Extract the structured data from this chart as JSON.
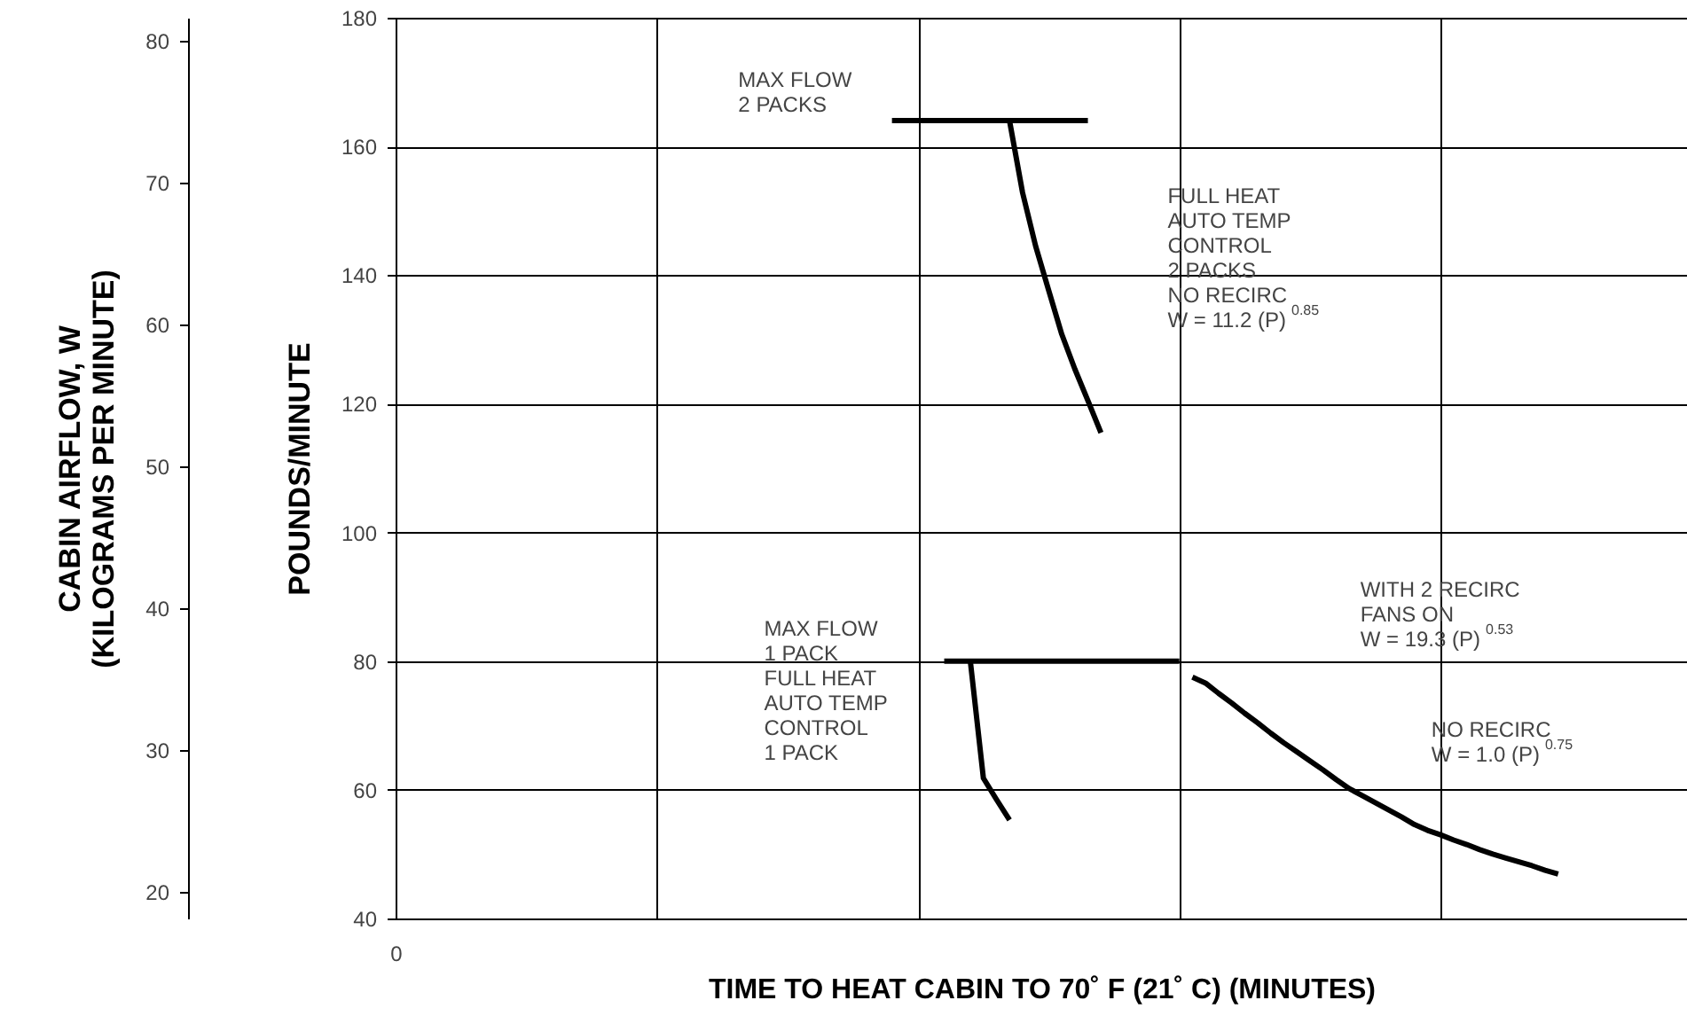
{
  "chart_data": {
    "type": "line",
    "xlabel": "TIME TO HEAT CABIN TO 70˚ F (21˚ C) (MINUTES)",
    "ylabel": "POUNDS/MINUTE",
    "y2label": "CABIN AIRFLOW, W\n(KILOGRAMS PER MINUTE)",
    "categories": [
      null,
      null,
      null,
      null,
      null,
      null,
      null,
      null,
      null,
      null,
      null,
      null,
      null,
      null,
      null,
      null,
      null,
      null,
      null,
      null,
      null,
      null,
      null,
      null,
      null,
      null,
      null,
      null,
      null,
      null,
      null,
      null,
      null,
      null,
      null,
      null,
      null,
      null,
      null,
      null,
      null,
      null,
      null,
      null,
      null,
      null,
      null,
      null,
      null,
      null,
      null,
      null,
      null,
      null,
      null,
      null,
      null,
      null,
      null,
      null,
      null,
      null,
      null,
      null,
      null,
      null,
      null,
      null,
      null,
      null,
      null,
      null,
      null,
      null,
      null,
      null,
      null,
      null,
      null,
      null,
      null,
      null,
      null,
      null,
      null,
      null,
      null,
      null,
      null,
      null,
      null,
      null,
      null,
      null,
      null,
      null,
      null,
      null,
      null,
      null
    ],
    "ylim": [
      40,
      180
    ],
    "yticks": [
      40,
      60,
      80,
      100,
      120,
      140,
      160,
      180
    ],
    "y2lim": [
      18.14,
      81.65
    ],
    "y2ticks": [
      20,
      30,
      40,
      50,
      60,
      70,
      80
    ],
    "grid": true,
    "marker": "none",
    "line_style": "solid",
    "series": [
      {
        "color": "#000000",
        "values": [
          null,
          null,
          null,
          null,
          null,
          null,
          null,
          null,
          null,
          null,
          null,
          null,
          null,
          null,
          null,
          null,
          null,
          null,
          null,
          null,
          null,
          null,
          null,
          null,
          null,
          null,
          null,
          null,
          null,
          null,
          null,
          null,
          null,
          null,
          null,
          null,
          null,
          null,
          164,
          164,
          164,
          164,
          164,
          164,
          164,
          164,
          164,
          164,
          164,
          164,
          164,
          164,
          164,
          164,
          null,
          null,
          null,
          null,
          null,
          null,
          null,
          null,
          null,
          null,
          null,
          null,
          null,
          null,
          null,
          null,
          null,
          null,
          null,
          null,
          null,
          null,
          null,
          null,
          null,
          null,
          null,
          null,
          null,
          null,
          null,
          null,
          null,
          null,
          null,
          null,
          null,
          null,
          null,
          null,
          null,
          null,
          null,
          null,
          null,
          null
        ]
      },
      {
        "color": "#000000",
        "values": [
          null,
          null,
          null,
          null,
          null,
          null,
          null,
          null,
          null,
          null,
          null,
          null,
          null,
          null,
          null,
          null,
          null,
          null,
          null,
          null,
          null,
          null,
          null,
          null,
          null,
          null,
          null,
          null,
          null,
          null,
          null,
          null,
          null,
          null,
          null,
          null,
          null,
          null,
          null,
          null,
          null,
          null,
          null,
          null,
          null,
          null,
          null,
          164,
          152.8,
          144.5,
          137.6,
          130.8,
          125.4,
          120.5,
          115.5,
          null,
          null,
          null,
          null,
          null,
          null,
          null,
          null,
          null,
          null,
          null,
          null,
          null,
          null,
          null,
          null,
          null,
          null,
          null,
          null,
          null,
          null,
          null,
          null,
          null,
          null,
          null,
          null,
          null,
          null,
          null,
          null,
          null,
          null,
          null,
          null,
          null,
          null,
          null,
          null,
          null,
          null,
          null,
          null,
          null
        ]
      },
      {
        "color": "#000000",
        "values": [
          null,
          null,
          null,
          null,
          null,
          null,
          null,
          null,
          null,
          null,
          null,
          null,
          null,
          null,
          null,
          null,
          null,
          null,
          null,
          null,
          null,
          null,
          null,
          null,
          null,
          null,
          null,
          null,
          null,
          null,
          null,
          null,
          null,
          null,
          null,
          null,
          null,
          null,
          null,
          null,
          null,
          null,
          80,
          80,
          80,
          80,
          80,
          80,
          80,
          80,
          80,
          80,
          80,
          80,
          80,
          80,
          80,
          80,
          80,
          80,
          80,
          null,
          null,
          null,
          null,
          null,
          null,
          null,
          null,
          null,
          null,
          null,
          null,
          null,
          null,
          null,
          null,
          null,
          null,
          null,
          null,
          null,
          null,
          null,
          null,
          null,
          null,
          null,
          null,
          null,
          null,
          null,
          null,
          null,
          null,
          null,
          null,
          null,
          null,
          null
        ]
      },
      {
        "color": "#000000",
        "values": [
          null,
          null,
          null,
          null,
          null,
          null,
          null,
          null,
          null,
          null,
          null,
          null,
          null,
          null,
          null,
          null,
          null,
          null,
          null,
          null,
          null,
          null,
          null,
          null,
          null,
          null,
          null,
          null,
          null,
          null,
          null,
          null,
          null,
          null,
          null,
          null,
          null,
          null,
          null,
          null,
          null,
          null,
          null,
          null,
          80,
          61.8,
          58.5,
          55.3,
          null,
          null,
          null,
          null,
          null,
          null,
          null,
          null,
          null,
          null,
          null,
          null,
          null,
          null,
          null,
          null,
          null,
          null,
          null,
          null,
          null,
          null,
          null,
          null,
          null,
          null,
          null,
          null,
          null,
          null,
          null,
          null,
          null,
          null,
          null,
          null,
          null,
          null,
          null,
          null,
          null,
          null,
          null,
          null,
          null,
          null,
          null,
          null,
          null,
          null,
          null,
          null
        ]
      },
      {
        "color": "#000000",
        "values": [
          null,
          null,
          null,
          null,
          null,
          null,
          null,
          null,
          null,
          null,
          null,
          null,
          null,
          null,
          null,
          null,
          null,
          null,
          null,
          null,
          null,
          null,
          null,
          null,
          null,
          null,
          null,
          null,
          null,
          null,
          null,
          null,
          null,
          null,
          null,
          null,
          null,
          null,
          null,
          null,
          null,
          null,
          null,
          null,
          null,
          null,
          null,
          null,
          null,
          null,
          null,
          null,
          null,
          null,
          null,
          null,
          null,
          null,
          null,
          null,
          null,
          77.5,
          76.6,
          75.0,
          73.5,
          71.9,
          70.4,
          68.8,
          67.3,
          65.9,
          64.5,
          63.1,
          61.6,
          60.2,
          59.1,
          58.0,
          56.9,
          55.8,
          54.6,
          53.7,
          53.0,
          52.2,
          51.5,
          50.7,
          50.0,
          49.4,
          48.8,
          48.2,
          47.5,
          46.9,
          null,
          null,
          null,
          null,
          null,
          null,
          null,
          null,
          null,
          null
        ]
      }
    ],
    "annotations": [
      "0",
      "MAX FLOW\n2 PACKS",
      "FULL HEAT\nAUTO TEMP\nCONTROL\n2 PACKS\nNO RECIRC\nW = 11.2 (P)$^{0.85}$",
      "MAX FLOW\n1 PACK\nFULL HEAT\nAUTO TEMP\nCONTROL\n1 PACK",
      "WITH 2 RECIRC\nFANS ON\nW = 19.3 (P)$^{0.53}$",
      "NO RECIRC\nW = 1.0 (P)$^{0.75}$"
    ]
  }
}
